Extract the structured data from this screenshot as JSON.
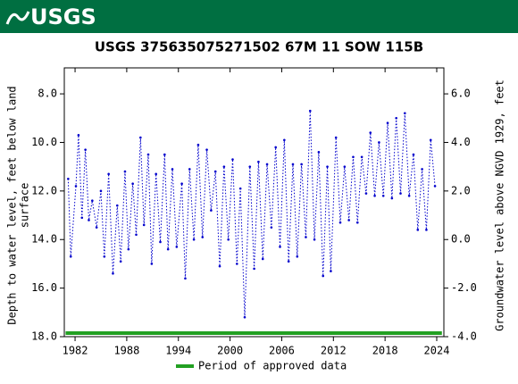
{
  "header": {
    "logo": "USGS"
  },
  "chart_data": {
    "type": "line",
    "title": "USGS 375635075271502 67M 11 SOW 115B",
    "y_label": [
      "Depth to water level, feet below land",
      "surface"
    ],
    "y2_label": "Groundwater level above NGVD 1929, feet",
    "xlim": [
      1980.75,
      2024.83
    ],
    "xticks": [
      1982,
      1988,
      1994,
      2000,
      2006,
      2012,
      2018,
      2024
    ],
    "ylim": [
      18,
      6.93
    ],
    "yticks": [
      {
        "value": 8,
        "label": "8.0"
      },
      {
        "value": 10,
        "label": "10.0"
      },
      {
        "value": 12,
        "label": "12.0"
      },
      {
        "value": 14,
        "label": "14.0"
      },
      {
        "value": 16,
        "label": "16.0"
      },
      {
        "value": 18,
        "label": "18.0"
      }
    ],
    "y2lim": [
      -4,
      7.07
    ],
    "y2ticks": [
      {
        "value": 6,
        "label": "6.0"
      },
      {
        "value": 4,
        "label": "4.0"
      },
      {
        "value": 2,
        "label": "2.0"
      },
      {
        "value": 0,
        "label": "0.0"
      },
      {
        "value": -2,
        "label": "-2.0"
      },
      {
        "value": -4,
        "label": "-4.0"
      }
    ],
    "series": [
      {
        "color": "#0000cc",
        "x": [
          1981.2,
          1981.5,
          1982.1,
          1982.4,
          1982.8,
          1983.2,
          1983.6,
          1984.0,
          1984.5,
          1985.0,
          1985.4,
          1985.9,
          1986.4,
          1986.9,
          1987.3,
          1987.8,
          1988.2,
          1988.7,
          1989.1,
          1989.6,
          1990.0,
          1990.5,
          1990.9,
          1991.4,
          1991.9,
          1992.4,
          1992.8,
          1993.3,
          1993.8,
          1994.4,
          1994.8,
          1995.3,
          1995.8,
          1996.3,
          1996.8,
          1997.3,
          1997.8,
          1998.3,
          1998.8,
          1999.3,
          1999.8,
          2000.3,
          2000.8,
          2001.2,
          2001.7,
          2002.3,
          2002.8,
          2003.3,
          2003.8,
          2004.3,
          2004.8,
          2005.3,
          2005.8,
          2006.3,
          2006.8,
          2007.3,
          2007.8,
          2008.3,
          2008.8,
          2009.3,
          2009.8,
          2010.3,
          2010.8,
          2011.3,
          2011.7,
          2012.3,
          2012.8,
          2013.3,
          2013.8,
          2014.3,
          2014.8,
          2015.3,
          2015.8,
          2016.3,
          2016.8,
          2017.3,
          2017.8,
          2018.3,
          2018.8,
          2019.3,
          2019.8,
          2020.3,
          2020.8,
          2021.3,
          2021.8,
          2022.3,
          2022.8,
          2023.3,
          2023.8
        ],
        "values": [
          11.5,
          14.7,
          11.8,
          9.7,
          13.1,
          10.3,
          13.2,
          12.4,
          13.5,
          12.0,
          14.7,
          11.3,
          15.4,
          12.6,
          14.9,
          11.2,
          14.4,
          11.7,
          13.8,
          9.8,
          13.4,
          10.5,
          15.0,
          11.3,
          14.1,
          10.5,
          14.4,
          11.1,
          14.3,
          11.7,
          15.6,
          11.1,
          14.0,
          10.1,
          13.9,
          10.3,
          12.8,
          11.2,
          15.1,
          11.0,
          14.0,
          10.7,
          15.0,
          11.9,
          17.2,
          11.0,
          15.2,
          10.8,
          14.8,
          10.9,
          13.5,
          10.2,
          14.3,
          9.9,
          14.9,
          10.9,
          14.7,
          10.9,
          13.9,
          8.7,
          14.0,
          10.4,
          15.5,
          11.0,
          15.3,
          9.8,
          13.3,
          11.0,
          13.2,
          10.6,
          13.3,
          10.6,
          12.1,
          9.6,
          12.2,
          10.0,
          12.2,
          9.2,
          12.3,
          9.0,
          12.1,
          8.8,
          12.2,
          10.5,
          13.6,
          11.1,
          13.6,
          9.9,
          11.8
        ]
      }
    ],
    "approved_period": {
      "name": "Period of approved data",
      "color": "#22a022",
      "x": [
        1980.9,
        2024.6
      ]
    }
  }
}
